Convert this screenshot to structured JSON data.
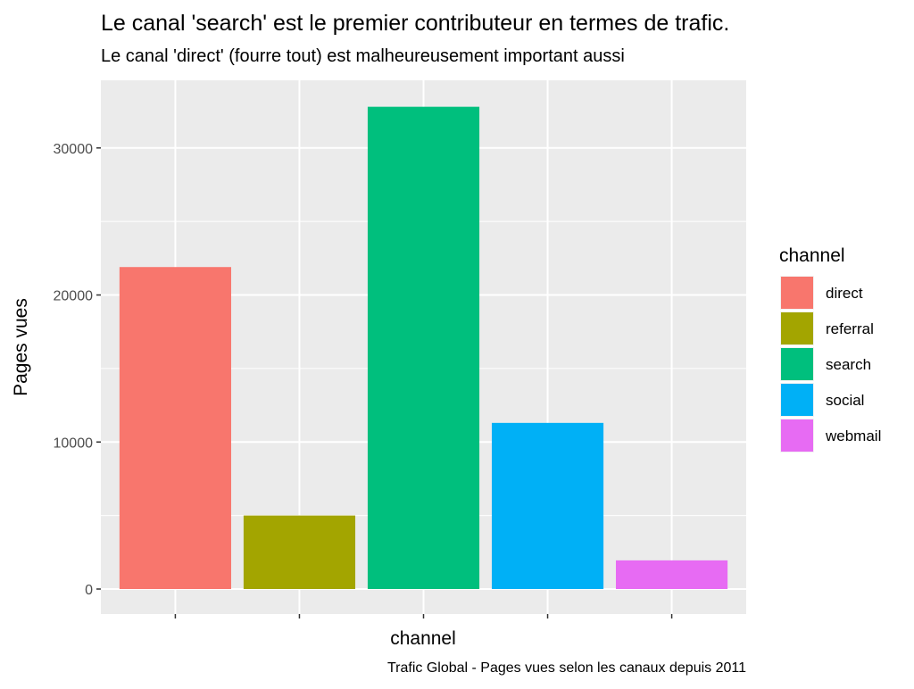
{
  "chart_data": {
    "type": "bar",
    "title": "Le canal 'search' est le premier contributeur en termes de trafic.",
    "subtitle": "Le canal 'direct' (fourre tout) est malheureusement important aussi",
    "caption": "Trafic Global - Pages vues selon les canaux depuis 2011",
    "xlabel": "channel",
    "ylabel": "Pages vues",
    "categories": [
      "direct",
      "referral",
      "search",
      "social",
      "webmail"
    ],
    "values": [
      21900,
      5000,
      32800,
      11300,
      1950
    ],
    "colors": [
      "#F8766D",
      "#A3A500",
      "#00BF7D",
      "#00B0F6",
      "#E76BF3"
    ],
    "ylim": [
      -1700,
      34600
    ],
    "yticks": [
      0,
      10000,
      20000,
      30000
    ],
    "ytick_labels": [
      "0",
      "10000",
      "20000",
      "30000"
    ],
    "grid": true,
    "legend": {
      "title": "channel",
      "placement": "right",
      "entries": [
        "direct",
        "referral",
        "search",
        "social",
        "webmail"
      ]
    }
  }
}
